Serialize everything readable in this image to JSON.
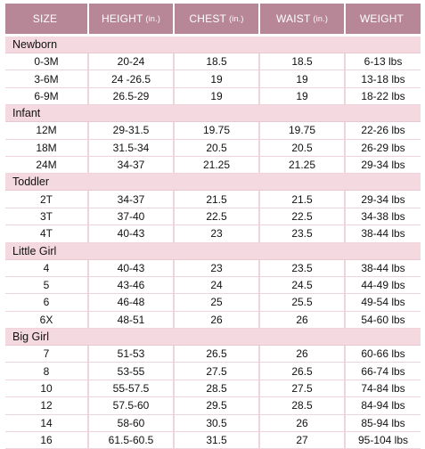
{
  "columns": [
    {
      "label": "SIZE",
      "unit": ""
    },
    {
      "label": "HEIGHT",
      "unit": "(in.)"
    },
    {
      "label": "CHEST",
      "unit": "(in.)"
    },
    {
      "label": "WAIST",
      "unit": "(in.)"
    },
    {
      "label": "WEIGHT",
      "unit": ""
    }
  ],
  "groups": [
    {
      "name": "Newborn",
      "rows": [
        [
          "0-3M",
          "20-24",
          "18.5",
          "18.5",
          "6-13 lbs"
        ],
        [
          "3-6M",
          "24 -26.5",
          "19",
          "19",
          "13-18 lbs"
        ],
        [
          "6-9M",
          "26.5-29",
          "19",
          "19",
          "18-22 lbs"
        ]
      ]
    },
    {
      "name": "Infant",
      "rows": [
        [
          "12M",
          "29-31.5",
          "19.75",
          "19.75",
          "22-26 lbs"
        ],
        [
          "18M",
          "31.5-34",
          "20.5",
          "20.5",
          "26-29 lbs"
        ],
        [
          "24M",
          "34-37",
          "21.25",
          "21.25",
          "29-34 lbs"
        ]
      ]
    },
    {
      "name": "Toddler",
      "rows": [
        [
          "2T",
          "34-37",
          "21.5",
          "21.5",
          "29-34 lbs"
        ],
        [
          "3T",
          "37-40",
          "22.5",
          "22.5",
          "34-38 lbs"
        ],
        [
          "4T",
          "40-43",
          "23",
          "23.5",
          "38-44 lbs"
        ]
      ]
    },
    {
      "name": "Little Girl",
      "rows": [
        [
          "4",
          "40-43",
          "23",
          "23.5",
          "38-44 lbs"
        ],
        [
          "5",
          "43-46",
          "24",
          "24.5",
          "44-49 lbs"
        ],
        [
          "6",
          "46-48",
          "25",
          "25.5",
          "49-54 lbs"
        ],
        [
          "6X",
          "48-51",
          "26",
          "26",
          "54-60 lbs"
        ]
      ]
    },
    {
      "name": "Big Girl",
      "rows": [
        [
          "7",
          "51-53",
          "26.5",
          "26",
          "60-66 lbs"
        ],
        [
          "8",
          "53-55",
          "27.5",
          "26.5",
          "66-74 lbs"
        ],
        [
          "10",
          "55-57.5",
          "28.5",
          "27.5",
          "74-84 lbs"
        ],
        [
          "12",
          "57.5-60",
          "29.5",
          "28.5",
          "84-94 lbs"
        ],
        [
          "14",
          "58-60",
          "30.5",
          "26",
          "85-94 lbs"
        ],
        [
          "16",
          "61.5-60.5",
          "31.5",
          "27",
          "95-104 lbs"
        ]
      ]
    }
  ],
  "colors": {
    "header_bg": "#b78797",
    "group_bg": "#f4d9e0",
    "grid_line": "#f0d3db"
  }
}
